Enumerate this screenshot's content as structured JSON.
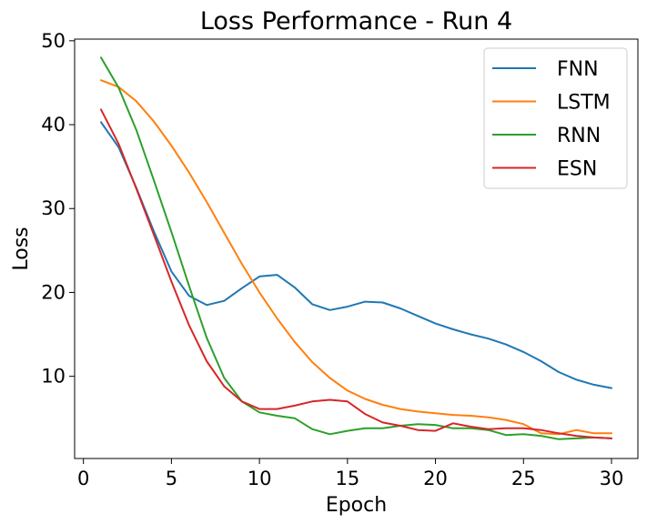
{
  "chart_data": {
    "type": "line",
    "title": "Loss Performance - Run 4",
    "xlabel": "Epoch",
    "ylabel": "Loss",
    "xlim": [
      -0.5,
      31.5
    ],
    "ylim": [
      0.2,
      50.2
    ],
    "xticks": [
      0,
      5,
      10,
      15,
      20,
      25,
      30
    ],
    "yticks": [
      10,
      20,
      30,
      40,
      50
    ],
    "grid": false,
    "legend_position": "top-right",
    "x": [
      1,
      2,
      3,
      4,
      5,
      6,
      7,
      8,
      9,
      10,
      11,
      12,
      13,
      14,
      15,
      16,
      17,
      18,
      19,
      20,
      21,
      22,
      23,
      24,
      25,
      26,
      27,
      28,
      29,
      30
    ],
    "series": [
      {
        "name": "FNN",
        "color": "#1f77b4",
        "values": [
          40.3,
          37.3,
          32.5,
          27.3,
          22.5,
          19.6,
          18.5,
          19.0,
          20.5,
          21.9,
          22.1,
          20.6,
          18.6,
          17.9,
          18.3,
          18.9,
          18.8,
          18.1,
          17.2,
          16.3,
          15.6,
          15.0,
          14.5,
          13.8,
          12.9,
          11.8,
          10.5,
          9.6,
          9.0,
          8.6
        ]
      },
      {
        "name": "LSTM",
        "color": "#ff7f0e",
        "values": [
          45.3,
          44.5,
          42.8,
          40.4,
          37.5,
          34.3,
          30.8,
          27.1,
          23.4,
          20.0,
          16.9,
          14.1,
          11.7,
          9.8,
          8.3,
          7.3,
          6.6,
          6.1,
          5.8,
          5.6,
          5.4,
          5.3,
          5.1,
          4.8,
          4.3,
          3.2,
          3.1,
          3.6,
          3.2,
          3.2
        ]
      },
      {
        "name": "RNN",
        "color": "#2ca02c",
        "values": [
          48.0,
          44.4,
          39.4,
          33.4,
          27.2,
          20.8,
          14.6,
          9.8,
          7.0,
          5.7,
          5.3,
          5.0,
          3.7,
          3.1,
          3.5,
          3.8,
          3.8,
          4.1,
          4.3,
          4.2,
          3.8,
          3.8,
          3.6,
          3.0,
          3.1,
          2.9,
          2.5,
          2.6,
          2.7,
          2.6
        ]
      },
      {
        "name": "ESN",
        "color": "#d62728",
        "values": [
          41.8,
          37.7,
          32.4,
          26.9,
          21.3,
          16.1,
          11.8,
          8.8,
          7.0,
          6.1,
          6.1,
          6.5,
          7.0,
          7.2,
          7.0,
          5.5,
          4.5,
          4.1,
          3.6,
          3.5,
          4.4,
          4.0,
          3.7,
          3.8,
          3.8,
          3.6,
          3.2,
          2.9,
          2.7,
          2.6
        ]
      }
    ]
  }
}
